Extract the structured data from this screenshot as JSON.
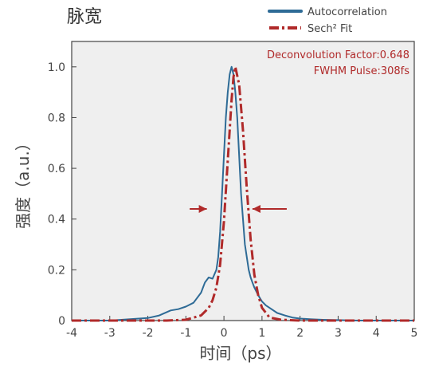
{
  "chart_data": {
    "type": "line",
    "title": "脉宽",
    "xlabel": "时间（ps）",
    "ylabel": "强度（a.u.）",
    "xlim": [
      -4,
      5
    ],
    "ylim": [
      0,
      1.1
    ],
    "x_ticks": [
      "-4",
      "-3",
      "-2",
      "-1",
      "0",
      "1",
      "2",
      "3",
      "4",
      "5"
    ],
    "y_ticks": [
      "0",
      "0.2",
      "0.4",
      "0.6",
      "0.8",
      "1.0"
    ],
    "grid": false,
    "legend_position": "top-right",
    "annotations": [
      "Deconvolution Factor:0.648",
      "FWHM Pulse:308fs"
    ],
    "series": [
      {
        "name": "Autocorrelation",
        "color": "#2e6b96",
        "style": "solid",
        "x": [
          -4.0,
          -3.0,
          -2.5,
          -2.0,
          -1.7,
          -1.4,
          -1.2,
          -1.0,
          -0.8,
          -0.6,
          -0.5,
          -0.4,
          -0.3,
          -0.2,
          -0.15,
          -0.1,
          -0.05,
          0.0,
          0.05,
          0.1,
          0.15,
          0.2,
          0.25,
          0.3,
          0.35,
          0.4,
          0.45,
          0.5,
          0.55,
          0.6,
          0.65,
          0.7,
          0.75,
          0.8,
          0.9,
          1.0,
          1.1,
          1.2,
          1.4,
          1.6,
          1.8,
          2.0,
          2.3,
          2.6,
          3.0,
          3.5,
          4.0,
          5.0
        ],
        "y": [
          0.0,
          0.0,
          0.005,
          0.01,
          0.02,
          0.04,
          0.045,
          0.055,
          0.07,
          0.11,
          0.15,
          0.17,
          0.165,
          0.2,
          0.25,
          0.35,
          0.5,
          0.65,
          0.8,
          0.9,
          0.97,
          1.0,
          0.97,
          0.9,
          0.8,
          0.65,
          0.5,
          0.4,
          0.3,
          0.25,
          0.2,
          0.17,
          0.15,
          0.13,
          0.1,
          0.075,
          0.06,
          0.05,
          0.03,
          0.02,
          0.012,
          0.008,
          0.005,
          0.003,
          0.002,
          0.0,
          0.0,
          0.0
        ]
      },
      {
        "name": "Sech² Fit",
        "color": "#b02a2a",
        "style": "dashdot",
        "x": [
          -4.0,
          -1.5,
          -1.0,
          -0.6,
          -0.4,
          -0.3,
          -0.2,
          -0.1,
          0.0,
          0.1,
          0.2,
          0.25,
          0.3,
          0.4,
          0.5,
          0.6,
          0.7,
          0.8,
          0.9,
          1.0,
          1.2,
          1.5,
          2.0,
          3.0,
          5.0
        ],
        "y": [
          0.0,
          0.0,
          0.003,
          0.02,
          0.05,
          0.08,
          0.13,
          0.22,
          0.39,
          0.63,
          0.87,
          0.96,
          1.0,
          0.93,
          0.75,
          0.52,
          0.32,
          0.18,
          0.1,
          0.05,
          0.012,
          0.003,
          0.0,
          0.0,
          0.0
        ]
      }
    ],
    "arrows": [
      {
        "direction": "right",
        "x_from": -0.9,
        "x_to": -0.45,
        "y": 0.44
      },
      {
        "direction": "left",
        "x_from": 1.65,
        "x_to": 0.75,
        "y": 0.44
      }
    ]
  }
}
